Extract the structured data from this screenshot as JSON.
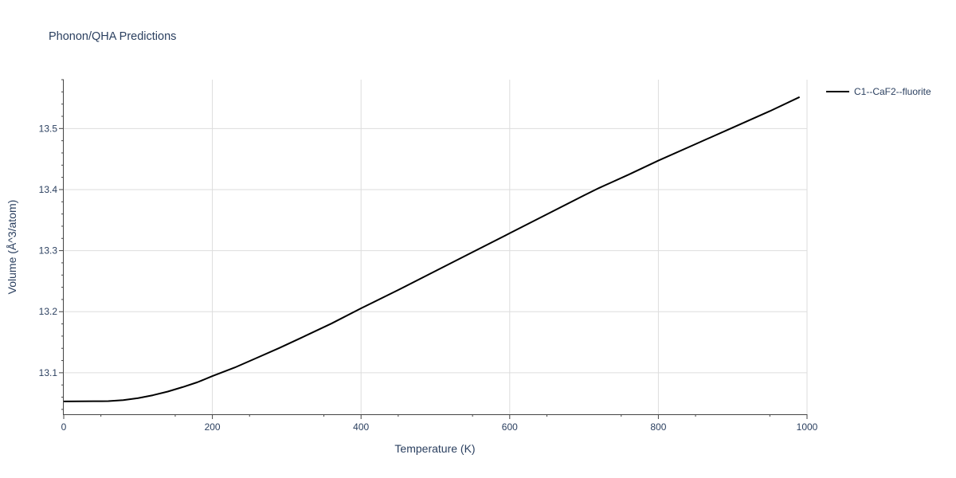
{
  "chart_data": {
    "type": "line",
    "title": "Phonon/QHA Predictions",
    "xlabel": "Temperature (K)",
    "ylabel": "Volume (Å^3/atom)",
    "xlim": [
      0,
      1000
    ],
    "ylim": [
      13.032,
      13.58
    ],
    "x_ticks": [
      0,
      200,
      400,
      600,
      800,
      1000
    ],
    "y_ticks": [
      13.1,
      13.2,
      13.3,
      13.4,
      13.5
    ],
    "x_tick_labels": [
      "0",
      "200",
      "400",
      "600",
      "800",
      "1000"
    ],
    "y_tick_labels": [
      "13.1",
      "13.2",
      "13.3",
      "13.4",
      "13.5"
    ],
    "grid": true,
    "legend_position": "top-right",
    "series": [
      {
        "name": "C1--CaF2--fluorite",
        "color": "#000000",
        "x": [
          0,
          20,
          40,
          60,
          80,
          100,
          120,
          140,
          160,
          180,
          200,
          230,
          260,
          290,
          320,
          360,
          400,
          450,
          500,
          550,
          600,
          650,
          700,
          720,
          760,
          800,
          850,
          900,
          950,
          990
        ],
        "y": [
          13.053,
          13.0532,
          13.0533,
          13.0535,
          13.0552,
          13.0584,
          13.0632,
          13.0692,
          13.0765,
          13.0845,
          13.0945,
          13.1085,
          13.1245,
          13.1405,
          13.1575,
          13.1805,
          13.2055,
          13.2355,
          13.2665,
          13.2975,
          13.3285,
          13.3595,
          13.3905,
          13.4025,
          13.4245,
          13.4475,
          13.4745,
          13.5015,
          13.5285,
          13.5515
        ]
      }
    ]
  }
}
